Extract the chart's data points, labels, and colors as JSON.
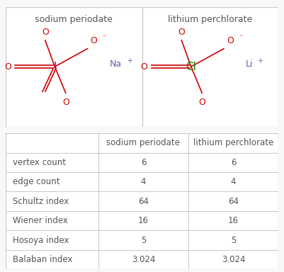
{
  "title_row": [
    "sodium periodate",
    "lithium perchlorate"
  ],
  "row_labels": [
    "vertex count",
    "edge count",
    "Schultz index",
    "Wiener index",
    "Hosoya index",
    "Balaban index"
  ],
  "col1_values": [
    "6",
    "4",
    "64",
    "16",
    "5",
    "3.024"
  ],
  "col2_values": [
    "6",
    "4",
    "64",
    "16",
    "5",
    "3.024"
  ],
  "text_color": "#555555",
  "o_color": "#cc0000",
  "i_color": "#9900bb",
  "cl_color": "#227700",
  "ion_color": "#7755aa",
  "border_color": "#cccccc",
  "bg_color": "#ffffff",
  "fig_bg": "#f8f8f8"
}
